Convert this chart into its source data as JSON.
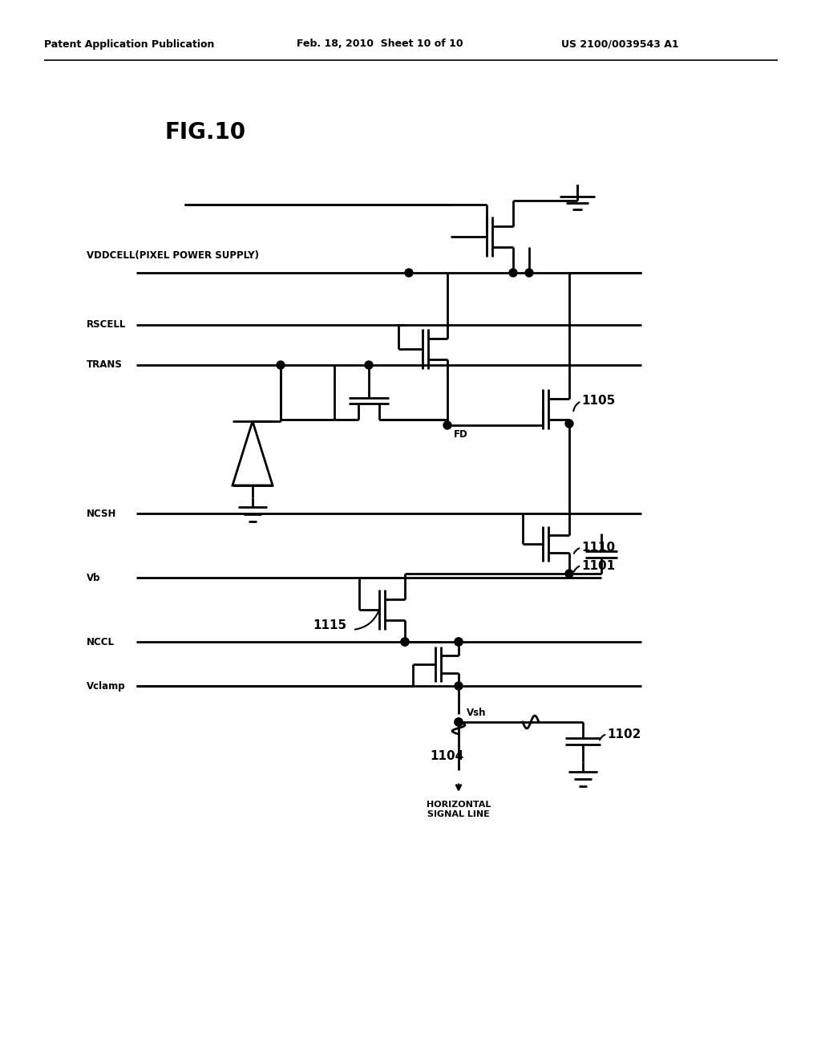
{
  "title": "FIG.10",
  "header_left": "Patent Application Publication",
  "header_center": "Feb. 18, 2010  Sheet 10 of 10",
  "header_right": "US 2100/0039543 A1",
  "background_color": "#ffffff",
  "line_color": "#000000",
  "labels": {
    "vddcell": "VDDCELL(PIXEL POWER SUPPLY)",
    "rscell": "RSCELL",
    "trans": "TRANS",
    "fd": "FD",
    "ncsh": "NCSH",
    "vb": "Vb",
    "nccl": "NCCL",
    "vclamp": "Vclamp",
    "vsh": "Vsh",
    "horizontal": "HORIZONTAL\nSIGNAL LINE",
    "n1105": "1105",
    "n1110": "1110",
    "n1101": "1101",
    "n1115": "1115",
    "n1104": "1104",
    "n1102": "1102"
  },
  "figsize": [
    10.24,
    13.2
  ],
  "dpi": 100
}
